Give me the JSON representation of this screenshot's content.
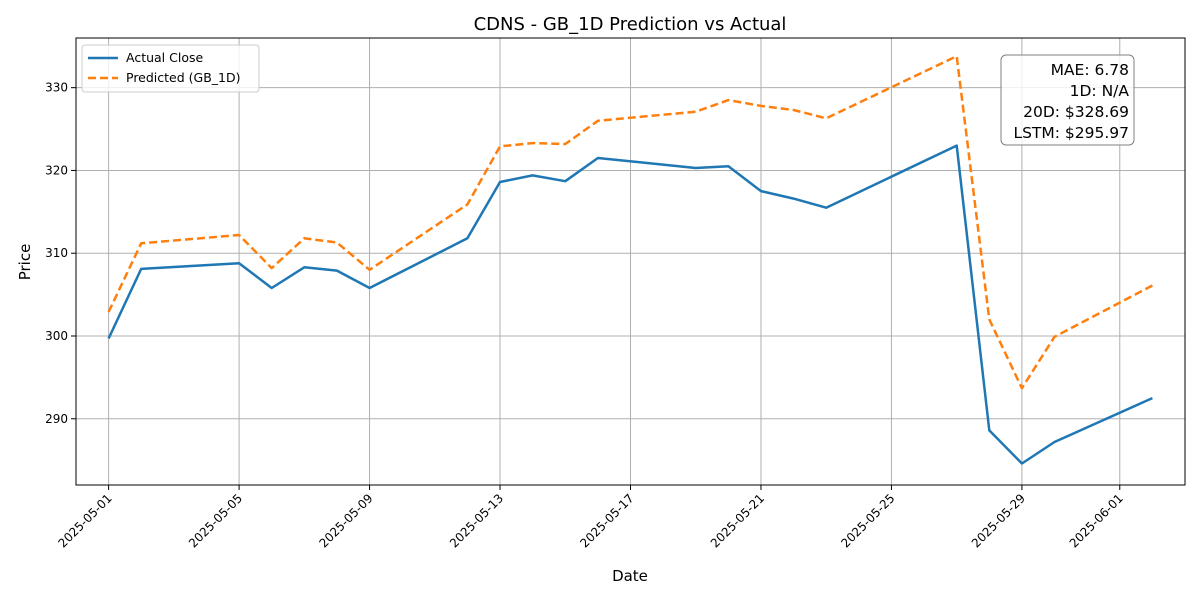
{
  "chart_data": {
    "type": "line",
    "title": "CDNS - GB_1D Prediction vs Actual",
    "xlabel": "Date",
    "ylabel": "Price",
    "xlim": [
      "2025-04-30",
      "2025-06-03"
    ],
    "ylim": [
      282,
      336
    ],
    "grid": true,
    "legend_position": "top-left",
    "x_ticks": [
      "2025-05-01",
      "2025-05-05",
      "2025-05-09",
      "2025-05-13",
      "2025-05-17",
      "2025-05-21",
      "2025-05-25",
      "2025-05-29",
      "2025-06-01"
    ],
    "y_ticks": [
      290,
      300,
      310,
      320,
      330
    ],
    "series": [
      {
        "name": "Actual Close",
        "color": "#1f77b4",
        "style": "solid",
        "x": [
          "2025-05-01",
          "2025-05-02",
          "2025-05-05",
          "2025-05-06",
          "2025-05-07",
          "2025-05-08",
          "2025-05-09",
          "2025-05-12",
          "2025-05-13",
          "2025-05-14",
          "2025-05-15",
          "2025-05-16",
          "2025-05-19",
          "2025-05-20",
          "2025-05-21",
          "2025-05-22",
          "2025-05-23",
          "2025-05-27",
          "2025-05-28",
          "2025-05-29",
          "2025-05-30",
          "2025-06-02"
        ],
        "values": [
          299.7,
          308.1,
          308.8,
          305.8,
          308.3,
          307.9,
          305.8,
          311.8,
          318.6,
          319.4,
          318.7,
          321.5,
          320.3,
          320.5,
          317.5,
          316.6,
          315.5,
          323.0,
          288.6,
          284.6,
          287.2,
          292.5
        ]
      },
      {
        "name": "Predicted (GB_1D)",
        "color": "#ff7f0e",
        "style": "dashed",
        "x": [
          "2025-05-01",
          "2025-05-02",
          "2025-05-05",
          "2025-05-06",
          "2025-05-07",
          "2025-05-08",
          "2025-05-09",
          "2025-05-12",
          "2025-05-13",
          "2025-05-14",
          "2025-05-15",
          "2025-05-16",
          "2025-05-19",
          "2025-05-20",
          "2025-05-21",
          "2025-05-22",
          "2025-05-23",
          "2025-05-27",
          "2025-05-28",
          "2025-05-29",
          "2025-05-30",
          "2025-06-02"
        ],
        "values": [
          302.9,
          311.2,
          312.2,
          308.2,
          311.8,
          311.3,
          308.0,
          315.9,
          322.9,
          323.3,
          323.2,
          326.0,
          327.1,
          328.5,
          327.8,
          327.3,
          326.3,
          333.8,
          302.0,
          293.7,
          299.9,
          306.1
        ]
      }
    ],
    "annotation": {
      "lines": [
        "MAE: 6.78",
        "1D: N/A",
        "20D: $328.69",
        "LSTM: $295.97"
      ],
      "position": "top-right"
    }
  }
}
